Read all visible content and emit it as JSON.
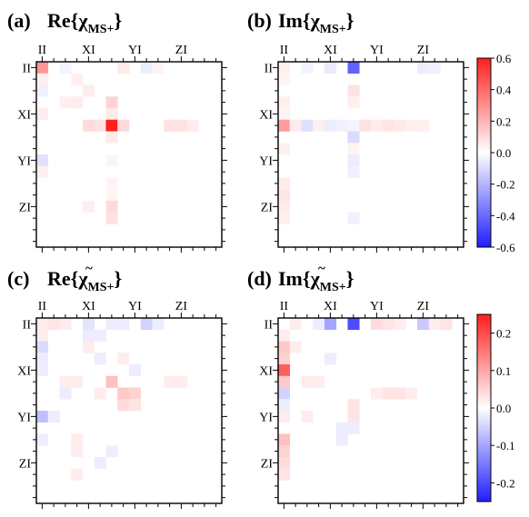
{
  "palette": {
    "negative": "#1f1fff",
    "zero": "#ffffff",
    "positive": "#ff1f1f",
    "frame": "#000000"
  },
  "chart_data": [
    {
      "type": "heatmap",
      "panel_label": "(a)",
      "title": {
        "prefix": "Re{",
        "chi": "χ",
        "sub": "MS+",
        "suffix": "}",
        "tilde": false
      },
      "ticklabels": [
        "II",
        "XI",
        "YI",
        "ZI"
      ],
      "scale_id": "top",
      "cells": [
        {
          "r": 0,
          "c": 0,
          "v": 0.28
        },
        {
          "r": 0,
          "c": 2,
          "v": -0.03
        },
        {
          "r": 0,
          "c": 7,
          "v": 0.06
        },
        {
          "r": 0,
          "c": 9,
          "v": -0.05
        },
        {
          "r": 0,
          "c": 10,
          "v": 0.03
        },
        {
          "r": 1,
          "c": 0,
          "v": 0.04
        },
        {
          "r": 1,
          "c": 3,
          "v": 0.04
        },
        {
          "r": 2,
          "c": 0,
          "v": -0.04
        },
        {
          "r": 2,
          "c": 4,
          "v": 0.05
        },
        {
          "r": 3,
          "c": 2,
          "v": 0.04
        },
        {
          "r": 3,
          "c": 3,
          "v": 0.05
        },
        {
          "r": 3,
          "c": 6,
          "v": 0.12
        },
        {
          "r": 4,
          "c": 0,
          "v": 0.05
        },
        {
          "r": 4,
          "c": 6,
          "v": 0.06
        },
        {
          "r": 5,
          "c": 4,
          "v": 0.1
        },
        {
          "r": 5,
          "c": 5,
          "v": 0.08
        },
        {
          "r": 5,
          "c": 6,
          "v": 0.95
        },
        {
          "r": 5,
          "c": 7,
          "v": 0.1
        },
        {
          "r": 5,
          "c": 11,
          "v": 0.08
        },
        {
          "r": 5,
          "c": 12,
          "v": 0.08
        },
        {
          "r": 5,
          "c": 13,
          "v": 0.05
        },
        {
          "r": 6,
          "c": 6,
          "v": 0.06
        },
        {
          "r": 8,
          "c": 0,
          "v": -0.08
        },
        {
          "r": 8,
          "c": 6,
          "v": 0.03
        },
        {
          "r": 9,
          "c": 0,
          "v": 0.04
        },
        {
          "r": 10,
          "c": 6,
          "v": 0.03
        },
        {
          "r": 11,
          "c": 6,
          "v": 0.03
        },
        {
          "r": 12,
          "c": 6,
          "v": 0.1
        },
        {
          "r": 12,
          "c": 4,
          "v": 0.04
        },
        {
          "r": 13,
          "c": 6,
          "v": 0.08
        }
      ]
    },
    {
      "type": "heatmap",
      "panel_label": "(b)",
      "title": {
        "prefix": "Im{",
        "chi": "χ",
        "sub": "MS+",
        "suffix": "}",
        "tilde": false
      },
      "ticklabels": [
        "II",
        "XI",
        "YI",
        "ZI"
      ],
      "scale_id": "top",
      "cells": [
        {
          "r": 0,
          "c": 0,
          "v": 0.04
        },
        {
          "r": 0,
          "c": 2,
          "v": -0.03
        },
        {
          "r": 0,
          "c": 4,
          "v": -0.06
        },
        {
          "r": 0,
          "c": 6,
          "v": -0.42
        },
        {
          "r": 0,
          "c": 12,
          "v": -0.05
        },
        {
          "r": 0,
          "c": 13,
          "v": -0.04
        },
        {
          "r": 1,
          "c": 0,
          "v": 0.03
        },
        {
          "r": 2,
          "c": 6,
          "v": 0.08
        },
        {
          "r": 3,
          "c": 0,
          "v": 0.04
        },
        {
          "r": 3,
          "c": 6,
          "v": 0.04
        },
        {
          "r": 4,
          "c": 0,
          "v": 0.03
        },
        {
          "r": 5,
          "c": 0,
          "v": 0.26
        },
        {
          "r": 5,
          "c": 1,
          "v": 0.05
        },
        {
          "r": 5,
          "c": 2,
          "v": -0.08
        },
        {
          "r": 5,
          "c": 3,
          "v": 0.04
        },
        {
          "r": 5,
          "c": 4,
          "v": -0.05
        },
        {
          "r": 5,
          "c": 5,
          "v": -0.04
        },
        {
          "r": 5,
          "c": 6,
          "v": -0.03
        },
        {
          "r": 5,
          "c": 7,
          "v": 0.08
        },
        {
          "r": 5,
          "c": 8,
          "v": 0.05
        },
        {
          "r": 5,
          "c": 9,
          "v": 0.07
        },
        {
          "r": 5,
          "c": 10,
          "v": 0.06
        },
        {
          "r": 5,
          "c": 11,
          "v": 0.04
        },
        {
          "r": 5,
          "c": 12,
          "v": 0.04
        },
        {
          "r": 6,
          "c": 6,
          "v": -0.1
        },
        {
          "r": 7,
          "c": 0,
          "v": 0.04
        },
        {
          "r": 7,
          "c": 6,
          "v": 0.03
        },
        {
          "r": 8,
          "c": 6,
          "v": -0.05
        },
        {
          "r": 9,
          "c": 6,
          "v": -0.04
        },
        {
          "r": 10,
          "c": 0,
          "v": 0.05
        },
        {
          "r": 11,
          "c": 0,
          "v": 0.07
        },
        {
          "r": 12,
          "c": 0,
          "v": 0.05
        },
        {
          "r": 13,
          "c": 0,
          "v": 0.04
        },
        {
          "r": 13,
          "c": 6,
          "v": -0.04
        }
      ]
    },
    {
      "type": "heatmap",
      "panel_label": "(c)",
      "title": {
        "prefix": "Re{",
        "chi": "χ",
        "sub": "MS+",
        "suffix": "}",
        "tilde": true
      },
      "ticklabels": [
        "II",
        "XI",
        "YI",
        "ZI"
      ],
      "scale_id": "bottom",
      "cells": [
        {
          "r": 0,
          "c": 0,
          "v": 0.02
        },
        {
          "r": 0,
          "c": 1,
          "v": 0.03
        },
        {
          "r": 0,
          "c": 2,
          "v": 0.02
        },
        {
          "r": 0,
          "c": 4,
          "v": -0.03
        },
        {
          "r": 0,
          "c": 6,
          "v": -0.02
        },
        {
          "r": 0,
          "c": 7,
          "v": -0.02
        },
        {
          "r": 0,
          "c": 9,
          "v": -0.05
        },
        {
          "r": 0,
          "c": 10,
          "v": -0.02
        },
        {
          "r": 1,
          "c": 0,
          "v": 0.02
        },
        {
          "r": 1,
          "c": 4,
          "v": -0.02
        },
        {
          "r": 1,
          "c": 5,
          "v": -0.02
        },
        {
          "r": 2,
          "c": 0,
          "v": -0.04
        },
        {
          "r": 2,
          "c": 4,
          "v": 0.02
        },
        {
          "r": 3,
          "c": 0,
          "v": -0.02
        },
        {
          "r": 3,
          "c": 5,
          "v": -0.02
        },
        {
          "r": 3,
          "c": 7,
          "v": 0.02
        },
        {
          "r": 4,
          "c": 0,
          "v": -0.02
        },
        {
          "r": 4,
          "c": 8,
          "v": -0.02
        },
        {
          "r": 5,
          "c": 2,
          "v": 0.02
        },
        {
          "r": 5,
          "c": 3,
          "v": 0.02
        },
        {
          "r": 5,
          "c": 6,
          "v": 0.07
        },
        {
          "r": 5,
          "c": 11,
          "v": 0.02
        },
        {
          "r": 5,
          "c": 12,
          "v": 0.02
        },
        {
          "r": 6,
          "c": 2,
          "v": -0.02
        },
        {
          "r": 6,
          "c": 5,
          "v": 0.02
        },
        {
          "r": 6,
          "c": 7,
          "v": 0.06
        },
        {
          "r": 6,
          "c": 8,
          "v": 0.05
        },
        {
          "r": 7,
          "c": 7,
          "v": 0.04
        },
        {
          "r": 7,
          "c": 8,
          "v": 0.03
        },
        {
          "r": 8,
          "c": 0,
          "v": -0.07
        },
        {
          "r": 8,
          "c": 1,
          "v": -0.02
        },
        {
          "r": 10,
          "c": 0,
          "v": -0.02
        },
        {
          "r": 10,
          "c": 3,
          "v": 0.02
        },
        {
          "r": 11,
          "c": 6,
          "v": -0.02
        },
        {
          "r": 11,
          "c": 3,
          "v": 0.02
        },
        {
          "r": 12,
          "c": 5,
          "v": -0.02
        },
        {
          "r": 13,
          "c": 3,
          "v": 0.02
        }
      ]
    },
    {
      "type": "heatmap",
      "panel_label": "(d)",
      "title": {
        "prefix": "Im{",
        "chi": "χ",
        "sub": "MS+",
        "suffix": "}",
        "tilde": true
      },
      "ticklabels": [
        "II",
        "XI",
        "YI",
        "ZI"
      ],
      "scale_id": "bottom",
      "cells": [
        {
          "r": 0,
          "c": 1,
          "v": 0.02
        },
        {
          "r": 0,
          "c": 3,
          "v": -0.02
        },
        {
          "r": 0,
          "c": 4,
          "v": -0.1
        },
        {
          "r": 0,
          "c": 6,
          "v": -0.2
        },
        {
          "r": 0,
          "c": 8,
          "v": 0.04
        },
        {
          "r": 0,
          "c": 9,
          "v": 0.03
        },
        {
          "r": 0,
          "c": 10,
          "v": 0.02
        },
        {
          "r": 0,
          "c": 12,
          "v": -0.06
        },
        {
          "r": 0,
          "c": 13,
          "v": 0.02
        },
        {
          "r": 0,
          "c": 14,
          "v": 0.03
        },
        {
          "r": 1,
          "c": 0,
          "v": 0.02
        },
        {
          "r": 2,
          "c": 0,
          "v": 0.06
        },
        {
          "r": 2,
          "c": 1,
          "v": 0.02
        },
        {
          "r": 3,
          "c": 0,
          "v": 0.05
        },
        {
          "r": 3,
          "c": 4,
          "v": -0.02
        },
        {
          "r": 4,
          "c": 0,
          "v": 0.18
        },
        {
          "r": 5,
          "c": 0,
          "v": 0.06
        },
        {
          "r": 5,
          "c": 2,
          "v": 0.02
        },
        {
          "r": 5,
          "c": 3,
          "v": 0.02
        },
        {
          "r": 6,
          "c": 0,
          "v": -0.05
        },
        {
          "r": 6,
          "c": 8,
          "v": 0.02
        },
        {
          "r": 6,
          "c": 9,
          "v": 0.03
        },
        {
          "r": 6,
          "c": 10,
          "v": 0.03
        },
        {
          "r": 6,
          "c": 11,
          "v": 0.02
        },
        {
          "r": 7,
          "c": 0,
          "v": -0.02
        },
        {
          "r": 7,
          "c": 6,
          "v": 0.03
        },
        {
          "r": 8,
          "c": 0,
          "v": 0.02
        },
        {
          "r": 8,
          "c": 2,
          "v": 0.02
        },
        {
          "r": 8,
          "c": 6,
          "v": 0.03
        },
        {
          "r": 9,
          "c": 5,
          "v": -0.02
        },
        {
          "r": 9,
          "c": 6,
          "v": -0.02
        },
        {
          "r": 10,
          "c": 0,
          "v": 0.07
        },
        {
          "r": 10,
          "c": 5,
          "v": -0.02
        },
        {
          "r": 11,
          "c": 0,
          "v": 0.05
        },
        {
          "r": 12,
          "c": 0,
          "v": 0.04
        },
        {
          "r": 13,
          "c": 0,
          "v": 0.03
        }
      ]
    }
  ],
  "colorbars": [
    {
      "id": "top",
      "min": -0.6,
      "max": 0.6,
      "ticks": [
        -0.6,
        -0.4,
        -0.2,
        0.0,
        0.2,
        0.4,
        0.6
      ],
      "ticklabels": [
        "-0.6",
        "-0.4",
        "-0.2",
        "0.0",
        "0.2",
        "0.4",
        "0.6"
      ]
    },
    {
      "id": "bottom",
      "min": -0.25,
      "max": 0.25,
      "ticks": [
        -0.2,
        -0.1,
        0.0,
        0.1,
        0.2
      ],
      "ticklabels": [
        "-0.2",
        "-0.1",
        "0.0",
        "0.1",
        "0.2"
      ]
    }
  ]
}
